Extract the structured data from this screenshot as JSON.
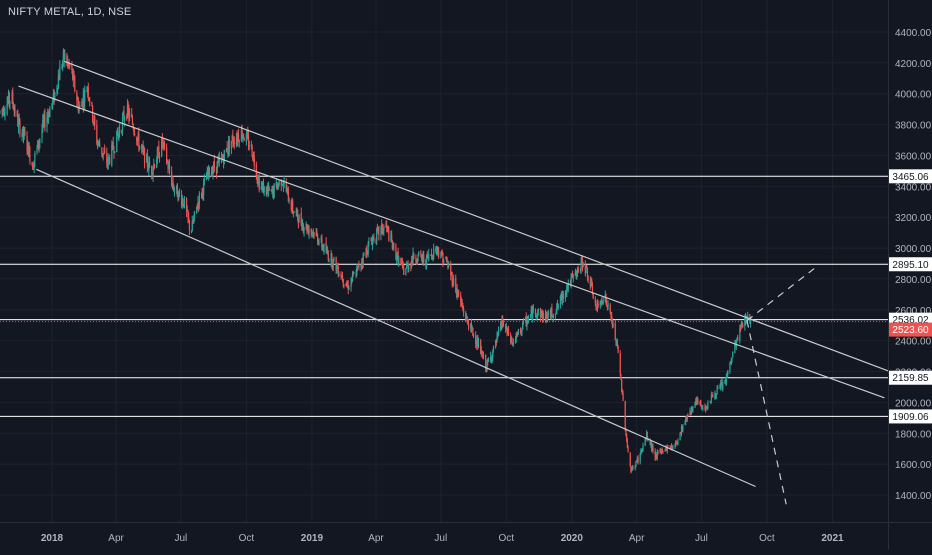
{
  "header": {
    "symbol_title": "NIFTY METAL, 1D, NSE"
  },
  "colors": {
    "background": "#131722",
    "grid": "#1e222d",
    "axis_text": "#b2b5be",
    "up": "#26a69a",
    "down": "#ef5350",
    "trendline": "#c8cad0",
    "hline": "#ffffff",
    "current_line": "#ef5350"
  },
  "chart_data": {
    "type": "candlestick",
    "title": "NIFTY METAL, 1D, NSE",
    "y_range": [
      1300,
      4500
    ],
    "y_ticks": [
      1400,
      1600,
      1800,
      2000,
      2200,
      2400,
      2600,
      2800,
      3000,
      3200,
      3400,
      3600,
      3800,
      4000,
      4200,
      4400
    ],
    "y_tick_labels": [
      "1400.00",
      "1600.00",
      "1800.00",
      "2000.00",
      "2200.00",
      "2400.00",
      "2600.00",
      "2800.00",
      "3000.00",
      "3200.00",
      "3400.00",
      "3600.00",
      "3800.00",
      "4000.00",
      "4200.00",
      "4400.00"
    ],
    "x_range": [
      "2017-10-20",
      "2021-03-20"
    ],
    "x_ticks": [
      {
        "date": "2018-01-01",
        "label": "2018"
      },
      {
        "date": "2018-04-01",
        "label": "Apr"
      },
      {
        "date": "2018-07-01",
        "label": "Jul"
      },
      {
        "date": "2018-10-01",
        "label": "Oct"
      },
      {
        "date": "2019-01-01",
        "label": "2019"
      },
      {
        "date": "2019-04-01",
        "label": "Apr"
      },
      {
        "date": "2019-07-01",
        "label": "Jul"
      },
      {
        "date": "2019-10-01",
        "label": "Oct"
      },
      {
        "date": "2020-01-01",
        "label": "2020"
      },
      {
        "date": "2020-04-01",
        "label": "Apr"
      },
      {
        "date": "2020-07-01",
        "label": "Jul"
      },
      {
        "date": "2020-10-01",
        "label": "Oct"
      },
      {
        "date": "2021-01-01",
        "label": "2021"
      }
    ],
    "price_path": [
      [
        "2017-10-20",
        3880
      ],
      [
        "2017-11-05",
        3980
      ],
      [
        "2017-11-15",
        3800
      ],
      [
        "2017-11-25",
        3700
      ],
      [
        "2017-12-05",
        3540
      ],
      [
        "2017-12-20",
        3800
      ],
      [
        "2018-01-03",
        3960
      ],
      [
        "2018-01-12",
        4150
      ],
      [
        "2018-01-18",
        4240
      ],
      [
        "2018-01-28",
        4150
      ],
      [
        "2018-02-08",
        3900
      ],
      [
        "2018-02-20",
        4050
      ],
      [
        "2018-03-05",
        3700
      ],
      [
        "2018-03-20",
        3550
      ],
      [
        "2018-04-05",
        3750
      ],
      [
        "2018-04-15",
        3900
      ],
      [
        "2018-04-25",
        3800
      ],
      [
        "2018-05-05",
        3650
      ],
      [
        "2018-05-20",
        3500
      ],
      [
        "2018-06-05",
        3680
      ],
      [
        "2018-06-20",
        3400
      ],
      [
        "2018-07-05",
        3300
      ],
      [
        "2018-07-15",
        3100
      ],
      [
        "2018-07-25",
        3300
      ],
      [
        "2018-08-10",
        3500
      ],
      [
        "2018-08-25",
        3550
      ],
      [
        "2018-09-10",
        3700
      ],
      [
        "2018-09-25",
        3750
      ],
      [
        "2018-10-08",
        3650
      ],
      [
        "2018-10-20",
        3400
      ],
      [
        "2018-11-05",
        3350
      ],
      [
        "2018-11-20",
        3450
      ],
      [
        "2018-12-05",
        3250
      ],
      [
        "2018-12-20",
        3150
      ],
      [
        "2019-01-05",
        3100
      ],
      [
        "2019-01-20",
        2980
      ],
      [
        "2019-02-05",
        2880
      ],
      [
        "2019-02-20",
        2750
      ],
      [
        "2019-03-05",
        2850
      ],
      [
        "2019-03-15",
        2950
      ],
      [
        "2019-03-25",
        3050
      ],
      [
        "2019-04-05",
        3100
      ],
      [
        "2019-04-15",
        3140
      ],
      [
        "2019-04-25",
        3000
      ],
      [
        "2019-05-10",
        2850
      ],
      [
        "2019-05-25",
        2950
      ],
      [
        "2019-06-10",
        2920
      ],
      [
        "2019-06-25",
        3000
      ],
      [
        "2019-07-10",
        2900
      ],
      [
        "2019-07-25",
        2700
      ],
      [
        "2019-08-05",
        2550
      ],
      [
        "2019-08-20",
        2400
      ],
      [
        "2019-09-03",
        2230
      ],
      [
        "2019-09-15",
        2360
      ],
      [
        "2019-09-25",
        2520
      ],
      [
        "2019-10-10",
        2380
      ],
      [
        "2019-10-25",
        2500
      ],
      [
        "2019-11-10",
        2600
      ],
      [
        "2019-11-25",
        2550
      ],
      [
        "2019-12-10",
        2600
      ],
      [
        "2019-12-25",
        2750
      ],
      [
        "2020-01-10",
        2850
      ],
      [
        "2020-01-17",
        2920
      ],
      [
        "2020-01-28",
        2750
      ],
      [
        "2020-02-05",
        2600
      ],
      [
        "2020-02-15",
        2700
      ],
      [
        "2020-02-25",
        2550
      ],
      [
        "2020-03-05",
        2350
      ],
      [
        "2020-03-12",
        2050
      ],
      [
        "2020-03-18",
        1750
      ],
      [
        "2020-03-24",
        1550
      ],
      [
        "2020-04-05",
        1650
      ],
      [
        "2020-04-15",
        1780
      ],
      [
        "2020-04-28",
        1650
      ],
      [
        "2020-05-10",
        1700
      ],
      [
        "2020-05-25",
        1720
      ],
      [
        "2020-06-05",
        1850
      ],
      [
        "2020-06-15",
        1950
      ],
      [
        "2020-06-25",
        2000
      ],
      [
        "2020-07-05",
        1960
      ],
      [
        "2020-07-15",
        2030
      ],
      [
        "2020-07-25",
        2080
      ],
      [
        "2020-08-05",
        2150
      ],
      [
        "2020-08-15",
        2330
      ],
      [
        "2020-08-25",
        2480
      ],
      [
        "2020-09-02",
        2560
      ],
      [
        "2020-09-08",
        2524
      ]
    ],
    "horizontal_levels": [
      {
        "value": 3465.06,
        "label": "3465.06"
      },
      {
        "value": 2895.1,
        "label": "2895.10"
      },
      {
        "value": 2536.02,
        "label": "2536.02"
      },
      {
        "value": 2159.85,
        "label": "2159.85"
      },
      {
        "value": 1909.06,
        "label": "1909.06"
      }
    ],
    "last_price": {
      "value": 2523.6,
      "label": "2523.60"
    },
    "trendlines": [
      {
        "points": [
          [
            "2018-01-18",
            4210
          ],
          [
            "2021-03-20",
            2205
          ]
        ],
        "style": "solid"
      },
      {
        "points": [
          [
            "2017-11-15",
            4050
          ],
          [
            "2021-03-15",
            2030
          ]
        ],
        "style": "solid"
      },
      {
        "points": [
          [
            "2017-12-10",
            3510
          ],
          [
            "2020-09-15",
            1455
          ]
        ],
        "style": "solid"
      },
      {
        "points": [
          [
            "2020-09-03",
            2530
          ],
          [
            "2020-12-10",
            2880
          ]
        ],
        "style": "dashed"
      },
      {
        "points": [
          [
            "2020-09-03",
            2530
          ],
          [
            "2020-10-28",
            1340
          ]
        ],
        "style": "dashed"
      }
    ]
  }
}
